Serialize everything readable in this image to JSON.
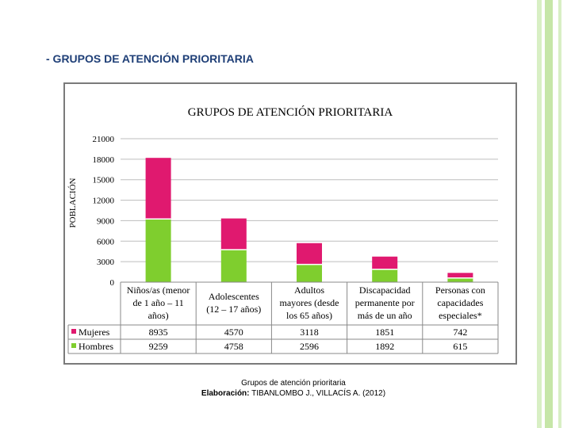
{
  "page": {
    "title": "- GRUPOS DE ATENCIÓN PRIORITARIA",
    "caption_line1": "Grupos de atención prioritaria",
    "caption_bold": "Elaboración:",
    "caption_rest": " TIBANLOMBO J., VILLACÍS A. (2012)"
  },
  "colors": {
    "mujeres": "#e0196f",
    "hombres": "#7fce2e",
    "title": "#1f3f77",
    "border_green": "#c6e6a8"
  },
  "chart_data": {
    "type": "bar",
    "stacked": true,
    "title": "GRUPOS DE ATENCIÓN PRIORITARIA",
    "ylabel": "POBLACIÓN",
    "ylim": [
      0,
      21000
    ],
    "yticks": [
      "0",
      "3000",
      "6000",
      "9000",
      "12000",
      "15000",
      "18000",
      "21000"
    ],
    "grid": true,
    "legend_placement": "table-left",
    "categories": [
      [
        "Niños/as (menor",
        "de 1 año – 11",
        "años)"
      ],
      [
        "Adolescentes",
        "(12 – 17 años)"
      ],
      [
        "Adultos",
        "mayores (desde",
        "los 65 años)"
      ],
      [
        "Discapacidad",
        "permanente por",
        "más de un año"
      ],
      [
        "Personas con",
        "capacidades",
        "especiales*"
      ]
    ],
    "series": [
      {
        "name": "Mujeres",
        "values": [
          8935,
          4570,
          3118,
          1851,
          742
        ]
      },
      {
        "name": "Hombres",
        "values": [
          9259,
          4758,
          2596,
          1892,
          615
        ]
      }
    ]
  }
}
